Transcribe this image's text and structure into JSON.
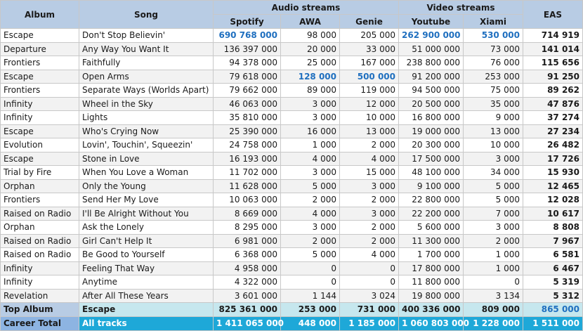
{
  "header": {
    "album": "Album",
    "song": "Song",
    "audio_group": "Audio streams",
    "video_group": "Video streams",
    "eas": "EAS",
    "spotify": "Spotify",
    "awa": "AWA",
    "genie": "Genie",
    "youtube": "Youtube",
    "xiami": "Xiami"
  },
  "colors": {
    "header_bg": "#b8cce4",
    "highlight_text": "#1f6fbf",
    "top_album_bg": "#c6e7ee",
    "career_bg": "#1ea8d8"
  },
  "rows": [
    {
      "album": "Escape",
      "song": "Don't Stop Believin'",
      "spotify": "690 768 000",
      "awa": "98 000",
      "genie": "205 000",
      "youtube": "262 900 000",
      "xiami": "530 000",
      "eas": "714 919",
      "hl": [
        "spotify",
        "youtube",
        "xiami"
      ]
    },
    {
      "album": "Departure",
      "song": "Any Way You Want It",
      "spotify": "136 397 000",
      "awa": "20 000",
      "genie": "33 000",
      "youtube": "51 000 000",
      "xiami": "73 000",
      "eas": "141 014",
      "hl": []
    },
    {
      "album": "Frontiers",
      "song": "Faithfully",
      "spotify": "94 378 000",
      "awa": "25 000",
      "genie": "167 000",
      "youtube": "238 800 000",
      "xiami": "76 000",
      "eas": "115 656",
      "hl": []
    },
    {
      "album": "Escape",
      "song": "Open Arms",
      "spotify": "79 618 000",
      "awa": "128 000",
      "genie": "500 000",
      "youtube": "91 200 000",
      "xiami": "253 000",
      "eas": "91 250",
      "hl": [
        "awa",
        "genie"
      ]
    },
    {
      "album": "Frontiers",
      "song": "Separate Ways (Worlds Apart)",
      "spotify": "79 662 000",
      "awa": "89 000",
      "genie": "119 000",
      "youtube": "94 500 000",
      "xiami": "75 000",
      "eas": "89 262",
      "hl": []
    },
    {
      "album": "Infinity",
      "song": "Wheel in the Sky",
      "spotify": "46 063 000",
      "awa": "3 000",
      "genie": "12 000",
      "youtube": "20 500 000",
      "xiami": "35 000",
      "eas": "47 876",
      "hl": []
    },
    {
      "album": "Infinity",
      "song": "Lights",
      "spotify": "35 810 000",
      "awa": "3 000",
      "genie": "10 000",
      "youtube": "16 800 000",
      "xiami": "9 000",
      "eas": "37 274",
      "hl": []
    },
    {
      "album": "Escape",
      "song": "Who's Crying Now",
      "spotify": "25 390 000",
      "awa": "16 000",
      "genie": "13 000",
      "youtube": "19 000 000",
      "xiami": "13 000",
      "eas": "27 234",
      "hl": []
    },
    {
      "album": "Evolution",
      "song": "Lovin', Touchin', Squeezin'",
      "spotify": "24 758 000",
      "awa": "1 000",
      "genie": "2 000",
      "youtube": "20 300 000",
      "xiami": "10 000",
      "eas": "26 482",
      "hl": []
    },
    {
      "album": "Escape",
      "song": "Stone in Love",
      "spotify": "16 193 000",
      "awa": "4 000",
      "genie": "4 000",
      "youtube": "17 500 000",
      "xiami": "3 000",
      "eas": "17 726",
      "hl": []
    },
    {
      "album": "Trial by Fire",
      "song": "When You Love a Woman",
      "spotify": "11 702 000",
      "awa": "3 000",
      "genie": "15 000",
      "youtube": "48 100 000",
      "xiami": "34 000",
      "eas": "15 930",
      "hl": []
    },
    {
      "album": "Orphan",
      "song": "Only the Young",
      "spotify": "11 628 000",
      "awa": "5 000",
      "genie": "3 000",
      "youtube": "9 100 000",
      "xiami": "5 000",
      "eas": "12 465",
      "hl": []
    },
    {
      "album": "Frontiers",
      "song": "Send Her My Love",
      "spotify": "10 063 000",
      "awa": "2 000",
      "genie": "2 000",
      "youtube": "22 800 000",
      "xiami": "5 000",
      "eas": "12 028",
      "hl": []
    },
    {
      "album": "Raised on Radio",
      "song": "I'll Be Alright Without You",
      "spotify": "8 669 000",
      "awa": "4 000",
      "genie": "3 000",
      "youtube": "22 200 000",
      "xiami": "7 000",
      "eas": "10 617",
      "hl": []
    },
    {
      "album": "Orphan",
      "song": "Ask the Lonely",
      "spotify": "8 295 000",
      "awa": "3 000",
      "genie": "2 000",
      "youtube": "5 600 000",
      "xiami": "3 000",
      "eas": "8 808",
      "hl": []
    },
    {
      "album": "Raised on Radio",
      "song": "Girl Can't Help It",
      "spotify": "6 981 000",
      "awa": "2 000",
      "genie": "2 000",
      "youtube": "11 300 000",
      "xiami": "2 000",
      "eas": "7 967",
      "hl": []
    },
    {
      "album": "Raised on Radio",
      "song": "Be Good to Yourself",
      "spotify": "6 368 000",
      "awa": "5 000",
      "genie": "4 000",
      "youtube": "1 700 000",
      "xiami": "1 000",
      "eas": "6 581",
      "hl": []
    },
    {
      "album": "Infinity",
      "song": "Feeling That Way",
      "spotify": "4 958 000",
      "awa": "0",
      "genie": "0",
      "youtube": "17 800 000",
      "xiami": "1 000",
      "eas": "6 467",
      "hl": []
    },
    {
      "album": "Infinity",
      "song": "Anytime",
      "spotify": "4 322 000",
      "awa": "0",
      "genie": "0",
      "youtube": "11 800 000",
      "xiami": "0",
      "eas": "5 319",
      "hl": []
    },
    {
      "album": "Revelation",
      "song": "After All These Years",
      "spotify": "3 601 000",
      "awa": "1 144",
      "genie": "3 024",
      "youtube": "19 800 000",
      "xiami": "3 134",
      "eas": "5 312",
      "hl": []
    }
  ],
  "top_album": {
    "label": "Top Album",
    "song": "Escape",
    "spotify": "825 361 000",
    "awa": "253 000",
    "genie": "731 000",
    "youtube": "400 336 000",
    "xiami": "809 000",
    "eas": "865 000"
  },
  "career_total": {
    "label": "Career Total",
    "song": "All tracks",
    "spotify": "1 411 065 000",
    "awa": "448 000",
    "genie": "1 185 000",
    "youtube": "1 060 803 000",
    "xiami": "1 228 000",
    "eas": "1 511 000"
  }
}
